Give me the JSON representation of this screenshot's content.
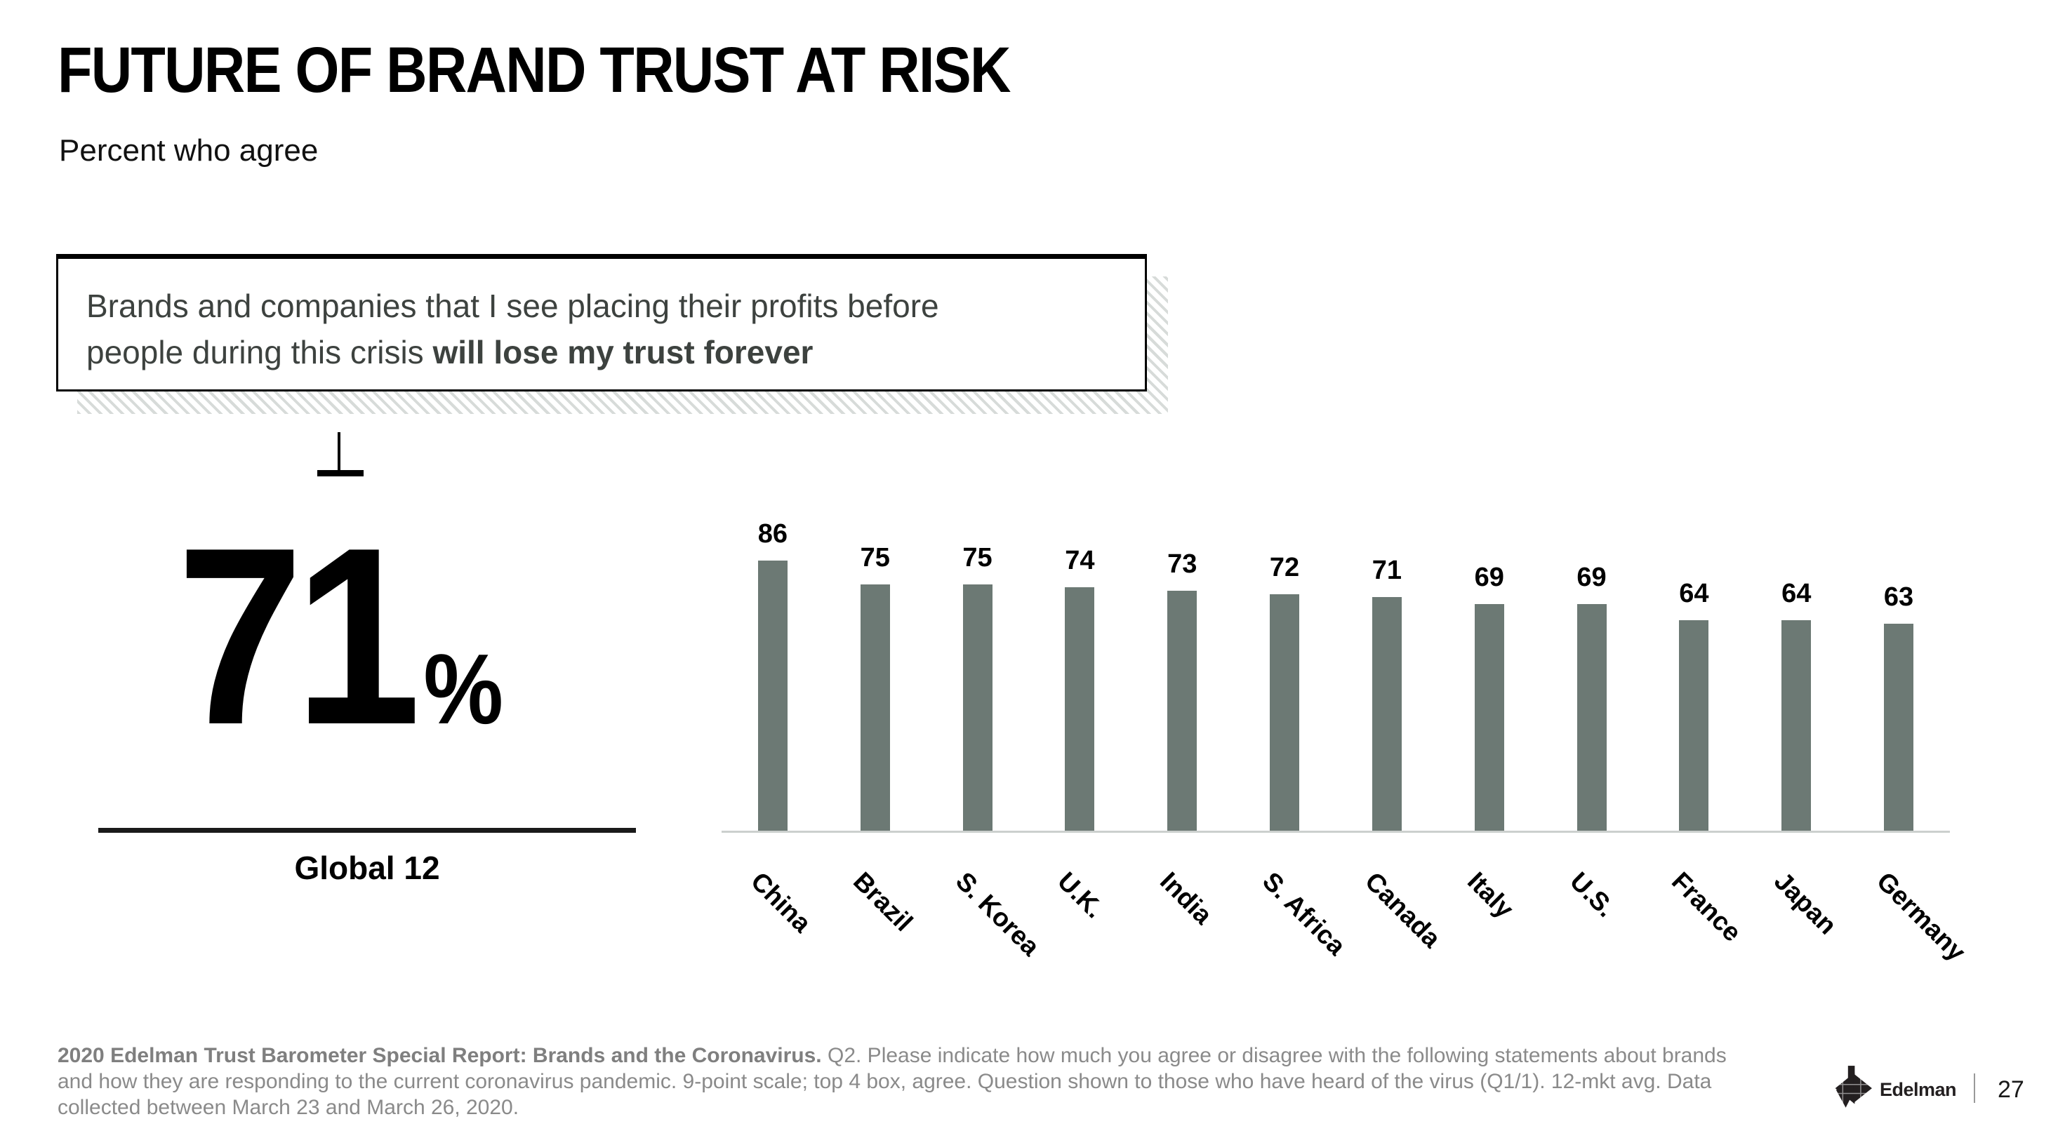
{
  "slide": {
    "title": "FUTURE OF BRAND TRUST AT RISK",
    "subtitle": "Percent who agree"
  },
  "quote": {
    "line1": "Brands and companies that I see placing their profits before",
    "line2_regular": "people during this crisis ",
    "line2_bold": "will lose my trust forever"
  },
  "stat": {
    "value": "71",
    "unit": "%",
    "label": "Global 12"
  },
  "chart_data": {
    "type": "bar",
    "categories": [
      "China",
      "Brazil",
      "S. Korea",
      "U.K.",
      "India",
      "S. Africa",
      "Canada",
      "Italy",
      "U.S.",
      "France",
      "Japan",
      "Germany"
    ],
    "values": [
      86,
      75,
      75,
      74,
      73,
      72,
      71,
      69,
      69,
      64,
      64,
      63
    ],
    "title": "Percent who agree: will lose my trust forever",
    "xlabel": "",
    "ylabel": "",
    "ylim": [
      0,
      90
    ],
    "grid": false,
    "legend": false,
    "value_labels_shown": true,
    "bar_color": "#6C7974",
    "axis_color": "#CCD0CE"
  },
  "footnote": {
    "bold": "2020 Edelman Trust Barometer Special Report: Brands and the Coronavirus.",
    "regular": " Q2. Please indicate how much you agree or disagree with the following statements about brands and how they are responding to the current coronavirus pandemic. 9-point scale; top 4 box, agree. Question shown to those who have heard of the virus (Q1/1). 12-mkt avg. Data collected between March 23 and March 26, 2020."
  },
  "footer": {
    "brand": "Edelman",
    "page_number": "27"
  }
}
